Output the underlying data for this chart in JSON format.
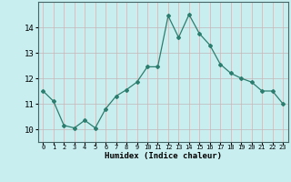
{
  "x": [
    0,
    1,
    2,
    3,
    4,
    5,
    6,
    7,
    8,
    9,
    10,
    11,
    12,
    13,
    14,
    15,
    16,
    17,
    18,
    19,
    20,
    21,
    22,
    23
  ],
  "y": [
    11.5,
    11.1,
    10.15,
    10.05,
    10.35,
    10.05,
    10.8,
    11.3,
    11.55,
    11.85,
    12.45,
    12.45,
    14.45,
    13.6,
    14.5,
    13.75,
    13.3,
    12.55,
    12.2,
    12.0,
    11.85,
    11.5,
    11.5,
    11.0
  ],
  "xlabel": "Humidex (Indice chaleur)",
  "ylim": [
    9.5,
    15.0
  ],
  "xlim": [
    -0.5,
    23.5
  ],
  "yticks": [
    10,
    11,
    12,
    13,
    14
  ],
  "xticks": [
    0,
    1,
    2,
    3,
    4,
    5,
    6,
    7,
    8,
    9,
    10,
    11,
    12,
    13,
    14,
    15,
    16,
    17,
    18,
    19,
    20,
    21,
    22,
    23
  ],
  "line_color": "#2d7d6e",
  "bg_color": "#c8eef0",
  "grid_color_major": "#c0b8b8",
  "grid_color_minor": "#e8a8a8"
}
